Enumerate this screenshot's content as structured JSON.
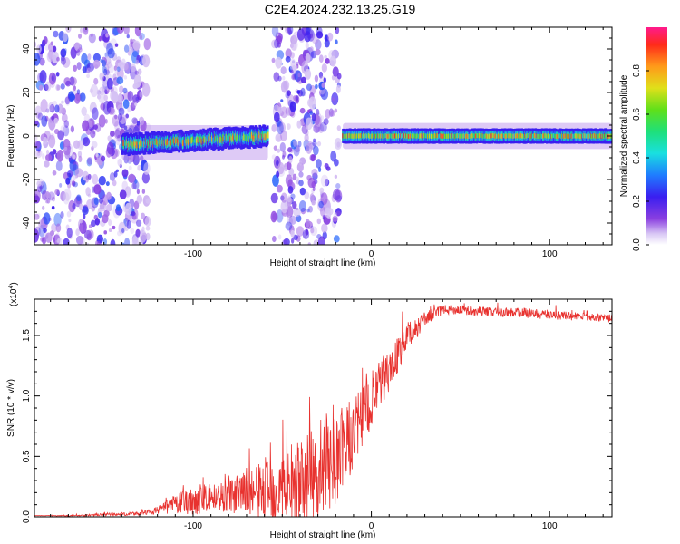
{
  "title": "C2E4.2024.232.13.25.G19",
  "spectrogram": {
    "xlabel": "Height of straight line (km)",
    "ylabel": "Frequency (Hz)",
    "xlim": [
      -189,
      135
    ],
    "ylim": [
      -50,
      50
    ],
    "xticks": [
      -100,
      0,
      100
    ],
    "yticks": [
      -40,
      -20,
      0,
      20,
      40
    ],
    "colorbar": {
      "label": "Normalized spectral amplitude",
      "ticks": [
        "0.0",
        "0.2",
        "0.4",
        "0.6",
        "0.8"
      ],
      "range": [
        0,
        1
      ]
    }
  },
  "chart_data": [
    {
      "type": "heatmap",
      "xlabel": "Height of straight line (km)",
      "ylabel": "Frequency (Hz)",
      "xlim": [
        -189,
        135
      ],
      "ylim": [
        -50,
        50
      ],
      "colorscale": "rainbow (0 purple to 1 red)",
      "regions": [
        {
          "x_range": [
            -189,
            -125
          ],
          "content": "noise",
          "amplitude": [
            0.0,
            0.25
          ]
        },
        {
          "x_range": [
            -140,
            -58
          ],
          "content": "signal band",
          "center_freq": -3,
          "width_hz": 8,
          "amplitude": [
            0.3,
            0.95
          ]
        },
        {
          "x_range": [
            -55,
            -18
          ],
          "content": "noise",
          "amplitude": [
            0.0,
            0.25
          ]
        },
        {
          "x_range": [
            -16,
            135
          ],
          "content": "signal band",
          "center_freq": 0,
          "width_hz": 6,
          "amplitude": [
            0.4,
            0.95
          ]
        }
      ],
      "grid": false
    },
    {
      "type": "line",
      "title": "",
      "xlabel": "Height of straight line (km)",
      "ylabel": "SNR (10 * v/v)",
      "y_multiplier": "x10^4",
      "xlim": [
        -189,
        135
      ],
      "ylim": [
        0,
        1.8
      ],
      "xticks": [
        -100,
        0,
        100
      ],
      "yticks": [
        "0.0",
        "0.5",
        "1.0",
        "1.5"
      ],
      "color": "#e8322f",
      "x": [
        -189,
        -170,
        -150,
        -130,
        -120,
        -110,
        -100,
        -90,
        -80,
        -70,
        -60,
        -50,
        -40,
        -30,
        -20,
        -10,
        0,
        10,
        20,
        30,
        40,
        50,
        60,
        70,
        80,
        90,
        100,
        110,
        120,
        135
      ],
      "y": [
        0.01,
        0.01,
        0.02,
        0.03,
        0.06,
        0.12,
        0.16,
        0.18,
        0.2,
        0.23,
        0.27,
        0.3,
        0.35,
        0.45,
        0.55,
        0.75,
        1.0,
        1.25,
        1.5,
        1.65,
        1.72,
        1.72,
        1.71,
        1.7,
        1.7,
        1.69,
        1.68,
        1.67,
        1.66,
        1.65
      ],
      "noise_amp": [
        0.0,
        0.005,
        0.01,
        0.015,
        0.03,
        0.08,
        0.12,
        0.12,
        0.14,
        0.18,
        0.25,
        0.3,
        0.35,
        0.4,
        0.4,
        0.3,
        0.25,
        0.18,
        0.12,
        0.06,
        0.04,
        0.04,
        0.04,
        0.04,
        0.04,
        0.04,
        0.04,
        0.04,
        0.03,
        0.03
      ],
      "grid": false
    }
  ],
  "snr": {
    "xlabel": "Height of straight line (km)",
    "ylabel": "SNR (10 * v/v)",
    "multiplier": "(x10",
    "multiplier_exp": "4",
    "multiplier_close": ")",
    "xticks": [
      -100,
      0,
      100
    ],
    "yticks": [
      "0.0",
      "0.5",
      "1.0",
      "1.5"
    ]
  }
}
